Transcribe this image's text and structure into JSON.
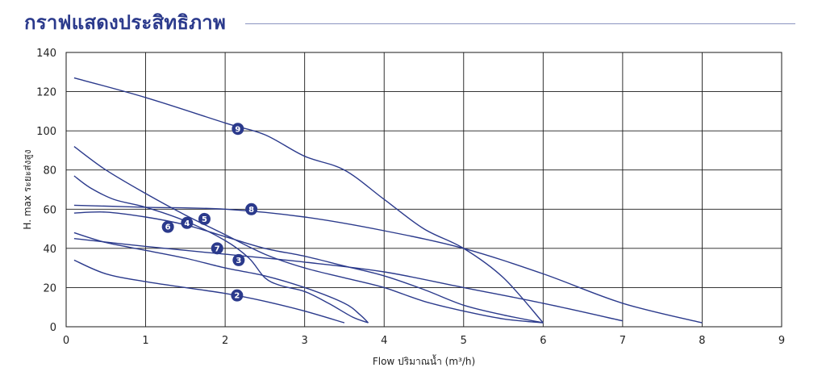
{
  "page": {
    "title": "กราฟแสดงประสิทธิภาพ"
  },
  "colors": {
    "accent": "#2b3a8c",
    "grid": "#1a1a1a",
    "text": "#222222"
  },
  "chart_data": {
    "type": "line",
    "title": "กราฟแสดงประสิทธิภาพ",
    "xlabel": "Flow ปริมาณน้ำ (m³/h)",
    "ylabel": "H. max ระยะส่งสูง",
    "xlim": [
      0,
      9
    ],
    "ylim": [
      0,
      140
    ],
    "xticks": [
      0,
      1,
      2,
      3,
      4,
      5,
      6,
      7,
      8,
      9
    ],
    "yticks": [
      0,
      20,
      40,
      60,
      80,
      100,
      120,
      140
    ],
    "grid": true,
    "legend": "numbered markers on curves",
    "series": [
      {
        "name": "2",
        "label_at": [
          2.15,
          16
        ],
        "points": [
          [
            0.1,
            34
          ],
          [
            0.5,
            27
          ],
          [
            1,
            23
          ],
          [
            1.5,
            20
          ],
          [
            2,
            17
          ],
          [
            2.5,
            13
          ],
          [
            3,
            8
          ],
          [
            3.5,
            2
          ]
        ]
      },
      {
        "name": "3",
        "label_at": [
          2.17,
          34
        ],
        "points": [
          [
            0.1,
            48
          ],
          [
            0.5,
            43
          ],
          [
            1,
            39
          ],
          [
            1.5,
            35
          ],
          [
            2,
            30
          ],
          [
            2.5,
            26
          ],
          [
            3,
            20
          ],
          [
            3.5,
            12
          ],
          [
            3.7,
            6
          ],
          [
            3.8,
            2
          ]
        ]
      },
      {
        "name": "4",
        "label_at": [
          1.52,
          53
        ],
        "points": [
          [
            0.1,
            77
          ],
          [
            0.3,
            71
          ],
          [
            0.6,
            65
          ],
          [
            1,
            61
          ],
          [
            1.5,
            54
          ],
          [
            2,
            44
          ],
          [
            2.3,
            35
          ],
          [
            2.5,
            25
          ],
          [
            2.7,
            21
          ],
          [
            3,
            18
          ],
          [
            3.3,
            12
          ],
          [
            3.6,
            5
          ],
          [
            3.8,
            2
          ]
        ]
      },
      {
        "name": "5",
        "label_at": [
          1.74,
          55
        ],
        "points": [
          [
            0.1,
            92
          ],
          [
            0.5,
            80
          ],
          [
            1,
            68
          ],
          [
            1.5,
            57
          ],
          [
            2,
            47
          ],
          [
            2.5,
            37
          ],
          [
            3,
            30
          ],
          [
            3.5,
            25
          ],
          [
            4,
            20
          ],
          [
            4.5,
            13
          ],
          [
            5,
            8
          ],
          [
            5.5,
            4
          ],
          [
            6,
            2
          ]
        ]
      },
      {
        "name": "6",
        "label_at": [
          1.28,
          51
        ],
        "points": [
          [
            0.1,
            58
          ],
          [
            0.5,
            58.5
          ],
          [
            1,
            56
          ],
          [
            1.5,
            52
          ],
          [
            2,
            46
          ],
          [
            2.5,
            40
          ],
          [
            3,
            36
          ],
          [
            3.5,
            31
          ],
          [
            4,
            26
          ],
          [
            4.5,
            19
          ],
          [
            5,
            11
          ],
          [
            5.5,
            6
          ],
          [
            6,
            2
          ]
        ]
      },
      {
        "name": "7",
        "label_at": [
          1.9,
          40
        ],
        "points": [
          [
            0.1,
            45
          ],
          [
            1,
            41
          ],
          [
            2,
            37
          ],
          [
            3,
            33
          ],
          [
            4,
            28
          ],
          [
            5,
            20
          ],
          [
            6,
            12
          ],
          [
            7,
            3
          ]
        ]
      },
      {
        "name": "8",
        "label_at": [
          2.33,
          60
        ],
        "points": [
          [
            0.1,
            62
          ],
          [
            1,
            61
          ],
          [
            2,
            60
          ],
          [
            3,
            56
          ],
          [
            4,
            49
          ],
          [
            5,
            40
          ],
          [
            6,
            27
          ],
          [
            7,
            12
          ],
          [
            8,
            2
          ]
        ]
      },
      {
        "name": "9",
        "label_at": [
          2.16,
          101
        ],
        "points": [
          [
            0.1,
            127
          ],
          [
            1,
            117
          ],
          [
            2,
            104
          ],
          [
            2.5,
            98
          ],
          [
            3,
            87
          ],
          [
            3.5,
            80
          ],
          [
            4,
            65
          ],
          [
            4.5,
            50
          ],
          [
            5,
            40
          ],
          [
            5.5,
            25
          ],
          [
            6,
            2
          ]
        ]
      }
    ]
  }
}
